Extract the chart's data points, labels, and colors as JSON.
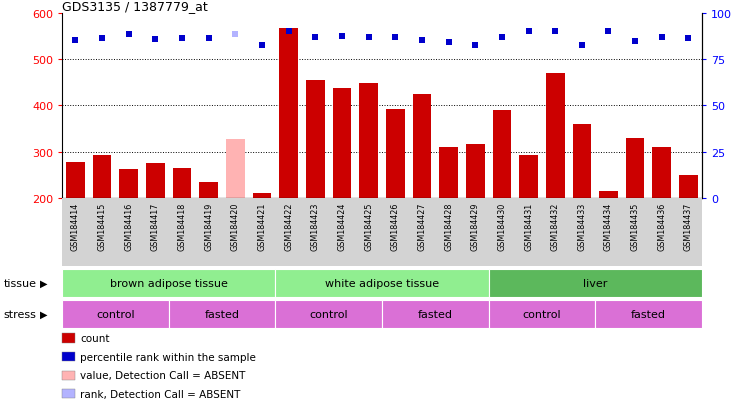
{
  "title": "GDS3135 / 1387779_at",
  "samples": [
    "GSM184414",
    "GSM184415",
    "GSM184416",
    "GSM184417",
    "GSM184418",
    "GSM184419",
    "GSM184420",
    "GSM184421",
    "GSM184422",
    "GSM184423",
    "GSM184424",
    "GSM184425",
    "GSM184426",
    "GSM184427",
    "GSM184428",
    "GSM184429",
    "GSM184430",
    "GSM184431",
    "GSM184432",
    "GSM184433",
    "GSM184434",
    "GSM184435",
    "GSM184436",
    "GSM184437"
  ],
  "counts": [
    277,
    293,
    263,
    275,
    265,
    234,
    328,
    210,
    568,
    455,
    438,
    449,
    393,
    424,
    311,
    316,
    390,
    293,
    470,
    360,
    215,
    330,
    310,
    249
  ],
  "absent_flags": [
    false,
    false,
    false,
    false,
    false,
    false,
    true,
    false,
    false,
    false,
    false,
    false,
    false,
    false,
    false,
    false,
    false,
    false,
    false,
    false,
    false,
    false,
    false,
    false
  ],
  "percentile_ranks": [
    542,
    545,
    554,
    544,
    545,
    545,
    554,
    530,
    562,
    549,
    551,
    549,
    549,
    542,
    538,
    530,
    549,
    562,
    562,
    530,
    560,
    540,
    549,
    545
  ],
  "rank_absent_flags": [
    false,
    false,
    false,
    false,
    false,
    false,
    true,
    false,
    false,
    false,
    false,
    false,
    false,
    false,
    false,
    false,
    false,
    false,
    false,
    false,
    false,
    false,
    false,
    false
  ],
  "ylim": [
    200,
    600
  ],
  "yticks": [
    200,
    300,
    400,
    500,
    600
  ],
  "y2lim": [
    0,
    100
  ],
  "y2ticks": [
    0,
    25,
    50,
    75,
    100
  ],
  "bar_color": "#cc0000",
  "bar_absent_color": "#ffb3b3",
  "dot_color": "#0000cc",
  "dot_absent_color": "#b3b3ff",
  "bg_color": "#ffffff",
  "xticklabel_bg": "#d3d3d3",
  "tissue_groups": [
    {
      "label": "brown adipose tissue",
      "start": 0,
      "end": 8,
      "color": "#90ee90"
    },
    {
      "label": "white adipose tissue",
      "start": 8,
      "end": 16,
      "color": "#90ee90"
    },
    {
      "label": "liver",
      "start": 16,
      "end": 24,
      "color": "#5cb85c"
    }
  ],
  "stress_groups": [
    {
      "label": "control",
      "start": 0,
      "end": 4
    },
    {
      "label": "fasted",
      "start": 4,
      "end": 8
    },
    {
      "label": "control",
      "start": 8,
      "end": 12
    },
    {
      "label": "fasted",
      "start": 12,
      "end": 16
    },
    {
      "label": "control",
      "start": 16,
      "end": 20
    },
    {
      "label": "fasted",
      "start": 20,
      "end": 24
    }
  ],
  "stress_color": "#da70d6",
  "tissue_label": "tissue",
  "stress_label": "stress",
  "legend_items": [
    {
      "color": "#cc0000",
      "label": "count"
    },
    {
      "color": "#0000cc",
      "label": "percentile rank within the sample"
    },
    {
      "color": "#ffb3b3",
      "label": "value, Detection Call = ABSENT"
    },
    {
      "color": "#b3b3ff",
      "label": "rank, Detection Call = ABSENT"
    }
  ]
}
